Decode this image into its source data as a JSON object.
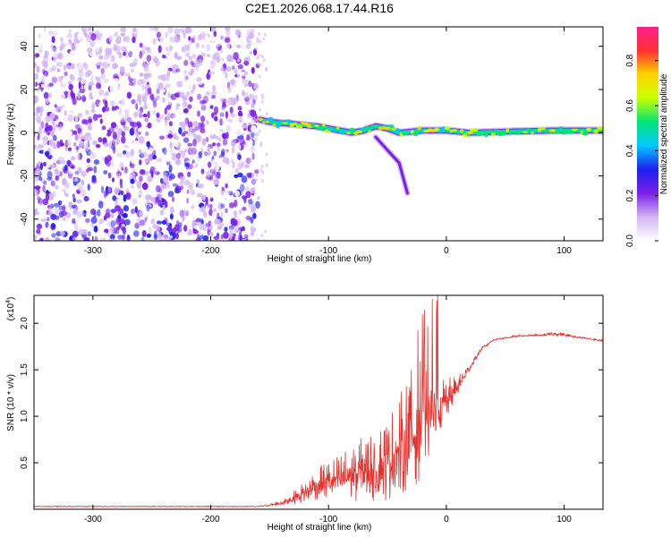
{
  "figure": {
    "title": "C2E1.2026.068.17.44.R16"
  },
  "chart_data": [
    {
      "type": "heatmap",
      "title": "C2E1.2026.068.17.44.R16",
      "xlabel": "Height of straight line (km)",
      "ylabel": "Frequency (Hz)",
      "xlim": [
        -350,
        133
      ],
      "ylim": [
        -50,
        49
      ],
      "xticks": [
        -300,
        -200,
        -100,
        0,
        100
      ],
      "yticks": [
        -40,
        -20,
        0,
        20,
        40
      ],
      "grid": false,
      "noise_region_x": [
        -350,
        -160
      ],
      "ridge": [
        {
          "x": -158,
          "y": 6
        },
        {
          "x": -150,
          "y": 5
        },
        {
          "x": -140,
          "y": 4.5
        },
        {
          "x": -130,
          "y": 4
        },
        {
          "x": -120,
          "y": 3.5
        },
        {
          "x": -110,
          "y": 3
        },
        {
          "x": -100,
          "y": 2
        },
        {
          "x": -90,
          "y": 1
        },
        {
          "x": -80,
          "y": 0
        },
        {
          "x": -70,
          "y": 1
        },
        {
          "x": -60,
          "y": 3
        },
        {
          "x": -50,
          "y": 2
        },
        {
          "x": -40,
          "y": 0
        },
        {
          "x": -30,
          "y": 0.5
        },
        {
          "x": -20,
          "y": 1
        },
        {
          "x": -10,
          "y": 1
        },
        {
          "x": 0,
          "y": 1
        },
        {
          "x": 20,
          "y": 0
        },
        {
          "x": 50,
          "y": 0.5
        },
        {
          "x": 90,
          "y": 1
        },
        {
          "x": 133,
          "y": 1
        }
      ],
      "tail": [
        {
          "x": -60,
          "y": -2
        },
        {
          "x": -50,
          "y": -8
        },
        {
          "x": -40,
          "y": -14
        },
        {
          "x": -33,
          "y": -28
        }
      ],
      "colorbar": {
        "label": "Normalized spectral amplitude",
        "range": [
          0,
          0.95
        ],
        "ticks": [
          0.0,
          0.2,
          0.4,
          0.6,
          0.8
        ],
        "tick_labels": [
          "0.0",
          "0.2",
          "0.4",
          "0.6",
          "0.8"
        ],
        "colors": [
          "#ffffff",
          "#d3b5f5",
          "#7a1fe8",
          "#2020f0",
          "#00c8ff",
          "#00e676",
          "#c8ff00",
          "#ffd400",
          "#ff3030",
          "#ff1f8f"
        ]
      }
    },
    {
      "type": "line",
      "xlabel": "Height of straight line (km)",
      "ylabel": "SNR (10 * v/v)",
      "multiplier_label": "(x10",
      "multiplier_exp": "4",
      "multiplier_close": ")",
      "xlim": [
        -350,
        133
      ],
      "ylim": [
        0,
        2.3
      ],
      "xticks": [
        -300,
        -200,
        -100,
        0,
        100
      ],
      "yticks": [
        0.5,
        1.0,
        1.5,
        2.0
      ],
      "ytick_labels": [
        "0.5",
        "1.0",
        "1.5",
        "2.0"
      ],
      "grid": false,
      "color": "#e8322e",
      "series": [
        {
          "x": [
            -350,
            -300,
            -250,
            -200,
            -160,
            -150,
            -140,
            -130,
            -120,
            -110,
            -100,
            -90,
            -80,
            -70,
            -60,
            -50,
            -40,
            -30,
            -20,
            -10,
            0,
            10,
            20,
            30,
            40,
            60,
            80,
            95,
            110,
            133
          ],
          "y": [
            0.03,
            0.03,
            0.03,
            0.03,
            0.03,
            0.04,
            0.06,
            0.1,
            0.15,
            0.22,
            0.25,
            0.28,
            0.3,
            0.33,
            0.35,
            0.4,
            0.5,
            0.65,
            0.8,
            0.95,
            1.1,
            1.3,
            1.52,
            1.72,
            1.82,
            1.86,
            1.87,
            1.88,
            1.85,
            1.81
          ],
          "spread": [
            0,
            0,
            0,
            0,
            0.005,
            0.02,
            0.05,
            0.1,
            0.18,
            0.25,
            0.3,
            0.35,
            0.45,
            0.5,
            0.55,
            0.65,
            0.8,
            0.95,
            0.9,
            0.6,
            0.35,
            0.15,
            0.06,
            0.03,
            0.02,
            0.015,
            0.015,
            0.03,
            0.015,
            0.015
          ]
        }
      ]
    }
  ]
}
